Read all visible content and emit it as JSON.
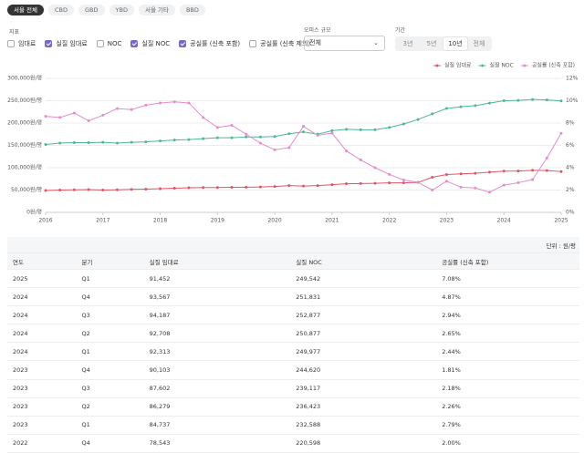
{
  "tabs": [
    "서울 전체",
    "CBD",
    "GBD",
    "YBD",
    "서울 기타",
    "BBD"
  ],
  "selected_tab": "서울 전체",
  "indicator": {
    "label": "지표",
    "options": [
      {
        "name": "임대료",
        "checked": false
      },
      {
        "name": "실질 임대료",
        "checked": true
      },
      {
        "name": "NOC",
        "checked": false
      },
      {
        "name": "실질 NOC",
        "checked": true
      },
      {
        "name": "공실률 (신축 포함)",
        "checked": true
      },
      {
        "name": "공실률 (신축 제외)",
        "checked": false
      }
    ]
  },
  "size": {
    "label": "오피스 규모",
    "value": "전체"
  },
  "period": {
    "label": "기간",
    "options": [
      "3년",
      "5년",
      "10년",
      "전체"
    ],
    "selected": "10년"
  },
  "chart_data": {
    "type": "line",
    "legend": "top-right",
    "grid": true,
    "x": [
      2016,
      2016.25,
      2016.5,
      2016.75,
      2017,
      2017.25,
      2017.5,
      2017.75,
      2018,
      2018.25,
      2018.5,
      2018.75,
      2019,
      2019.25,
      2019.5,
      2019.75,
      2020,
      2020.25,
      2020.5,
      2020.75,
      2021,
      2021.25,
      2021.5,
      2021.75,
      2022,
      2022.25,
      2022.5,
      2022.75,
      2023,
      2023.25,
      2023.5,
      2023.75,
      2024,
      2024.25,
      2024.5,
      2024.75,
      2025
    ],
    "xlim": [
      2016,
      2025
    ],
    "xticks": [
      2016,
      2017,
      2018,
      2019,
      2020,
      2021,
      2022,
      2023,
      2024,
      2025
    ],
    "ylim": [
      0,
      300000
    ],
    "yticks": [
      {
        "value": 0,
        "label": "0원/평"
      },
      {
        "value": 50000,
        "label": "50,000원/평"
      },
      {
        "value": 100000,
        "label": "100,000원/평"
      },
      {
        "value": 150000,
        "label": "150,000원/평"
      },
      {
        "value": 200000,
        "label": "200,000원/평"
      },
      {
        "value": 250000,
        "label": "250,000원/평"
      },
      {
        "value": 300000,
        "label": "300,000원/평"
      }
    ],
    "y2lim": [
      0,
      12
    ],
    "y2ticks": [
      {
        "value": 0,
        "label": "0%"
      },
      {
        "value": 2,
        "label": "2%"
      },
      {
        "value": 4,
        "label": "4%"
      },
      {
        "value": 6,
        "label": "6%"
      },
      {
        "value": 8,
        "label": "8%"
      },
      {
        "value": 10,
        "label": "10%"
      },
      {
        "value": 12,
        "label": "12%"
      }
    ],
    "series": [
      {
        "name": "실질 임대료",
        "color": "#e05565",
        "values": [
          49000,
          50000,
          50500,
          51000,
          50000,
          50500,
          51500,
          52000,
          53000,
          54000,
          55000,
          55500,
          55500,
          56000,
          56500,
          57000,
          58000,
          60000,
          59000,
          60000,
          62000,
          64000,
          64500,
          65000,
          66000,
          66000,
          67000,
          78543,
          84737,
          86279,
          87602,
          90103,
          92313,
          92708,
          94187,
          93567,
          91452
        ]
      },
      {
        "name": "실질 NOC",
        "color": "#4db79a",
        "values": [
          152000,
          155000,
          156000,
          156000,
          157000,
          155000,
          157000,
          158000,
          160000,
          162000,
          163000,
          165000,
          167000,
          167000,
          169000,
          169000,
          170000,
          176000,
          180000,
          175000,
          183000,
          186000,
          185000,
          185000,
          190000,
          198000,
          208000,
          220598,
          232588,
          236423,
          239117,
          244620,
          249977,
          250877,
          252877,
          251831,
          249542
        ]
      },
      {
        "name": "공실률 (신축 포함)",
        "color": "#e48ccb",
        "axis": "y2",
        "values": [
          8.6,
          8.5,
          8.9,
          8.2,
          8.7,
          9.3,
          9.2,
          9.6,
          9.8,
          9.9,
          9.8,
          8.5,
          7.6,
          7.8,
          7.0,
          6.2,
          5.6,
          5.8,
          7.7,
          6.9,
          7.1,
          5.5,
          4.7,
          4.0,
          3.4,
          2.9,
          2.7,
          2.0,
          2.79,
          2.26,
          2.18,
          1.81,
          2.44,
          2.65,
          2.94,
          4.87,
          7.08
        ]
      }
    ]
  },
  "table": {
    "unit": "단위 : 원/평",
    "columns": [
      "연도",
      "분기",
      "실질 임대료",
      "실질 NOC",
      "공실률 (신축 포함)"
    ],
    "rows": [
      [
        "2025",
        "Q1",
        "91,452",
        "249,542",
        "7.08%"
      ],
      [
        "2024",
        "Q4",
        "93,567",
        "251,831",
        "4.87%"
      ],
      [
        "2024",
        "Q3",
        "94,187",
        "252,877",
        "2.94%"
      ],
      [
        "2024",
        "Q2",
        "92,708",
        "250,877",
        "2.65%"
      ],
      [
        "2024",
        "Q1",
        "92,313",
        "249,977",
        "2.44%"
      ],
      [
        "2023",
        "Q4",
        "90,103",
        "244,620",
        "1.81%"
      ],
      [
        "2023",
        "Q3",
        "87,602",
        "239,117",
        "2.18%"
      ],
      [
        "2023",
        "Q2",
        "86,279",
        "236,423",
        "2.26%"
      ],
      [
        "2023",
        "Q1",
        "84,737",
        "232,588",
        "2.79%"
      ],
      [
        "2022",
        "Q4",
        "78,543",
        "220,598",
        "2.00%"
      ]
    ]
  }
}
